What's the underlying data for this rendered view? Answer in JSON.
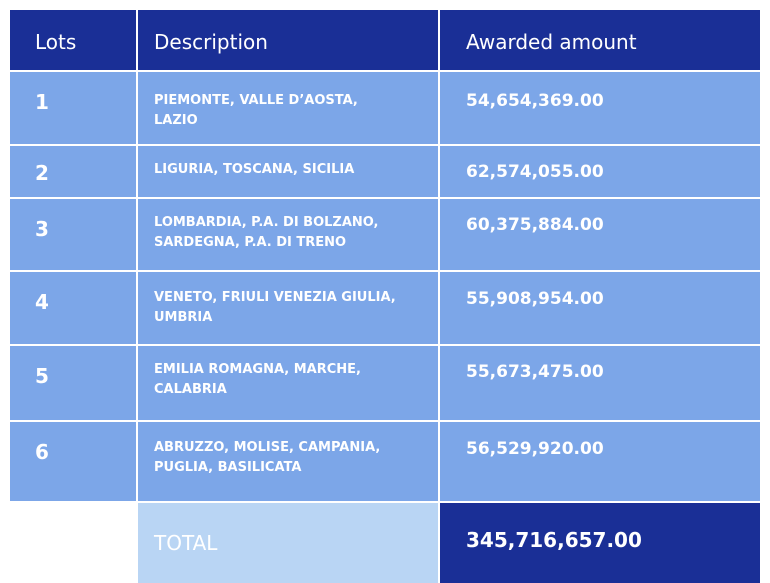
{
  "table": {
    "headers": [
      "Lots",
      "Description",
      "Awarded amount"
    ],
    "rows": [
      {
        "lot": "1",
        "description_lines": [
          "PIEMONTE, VALLE D’AOSTA,",
          "LAZIO"
        ],
        "amount": "54,654,369.00"
      },
      {
        "lot": "2",
        "description_lines": [
          "LIGURIA, TOSCANA, SICILIA",
          ""
        ],
        "amount": "62,574,055.00"
      },
      {
        "lot": "3",
        "description_lines": [
          "LOMBARDIA, P.A. DI BOLZANO,",
          "SARDEGNA, P.A. DI TRENO"
        ],
        "amount": "60,375,884.00"
      },
      {
        "lot": "4",
        "description_lines": [
          "VENETO, FRIULI VENEZIA GIULIA,",
          "UMBRIA"
        ],
        "amount": "55,908,954.00"
      },
      {
        "lot": "5",
        "description_lines": [
          "EMILIA ROMAGNA, MARCHE,",
          "CALABRIA"
        ],
        "amount": "55,673,475.00"
      },
      {
        "lot": "6",
        "description_lines": [
          "ABRUZZO, MOLISE, CAMPANIA,",
          "PUGLIA, BASILICATA"
        ],
        "amount": "56,529,920.00"
      }
    ],
    "total": {
      "label": "TOTAL",
      "amount": "345,716,657.00"
    }
  },
  "colors": {
    "header_bg": "#1a2f96",
    "row_bg": "#7ca6e8",
    "total_label_bg": "#b9d5f4",
    "total_amount_bg": "#1a2f96"
  }
}
